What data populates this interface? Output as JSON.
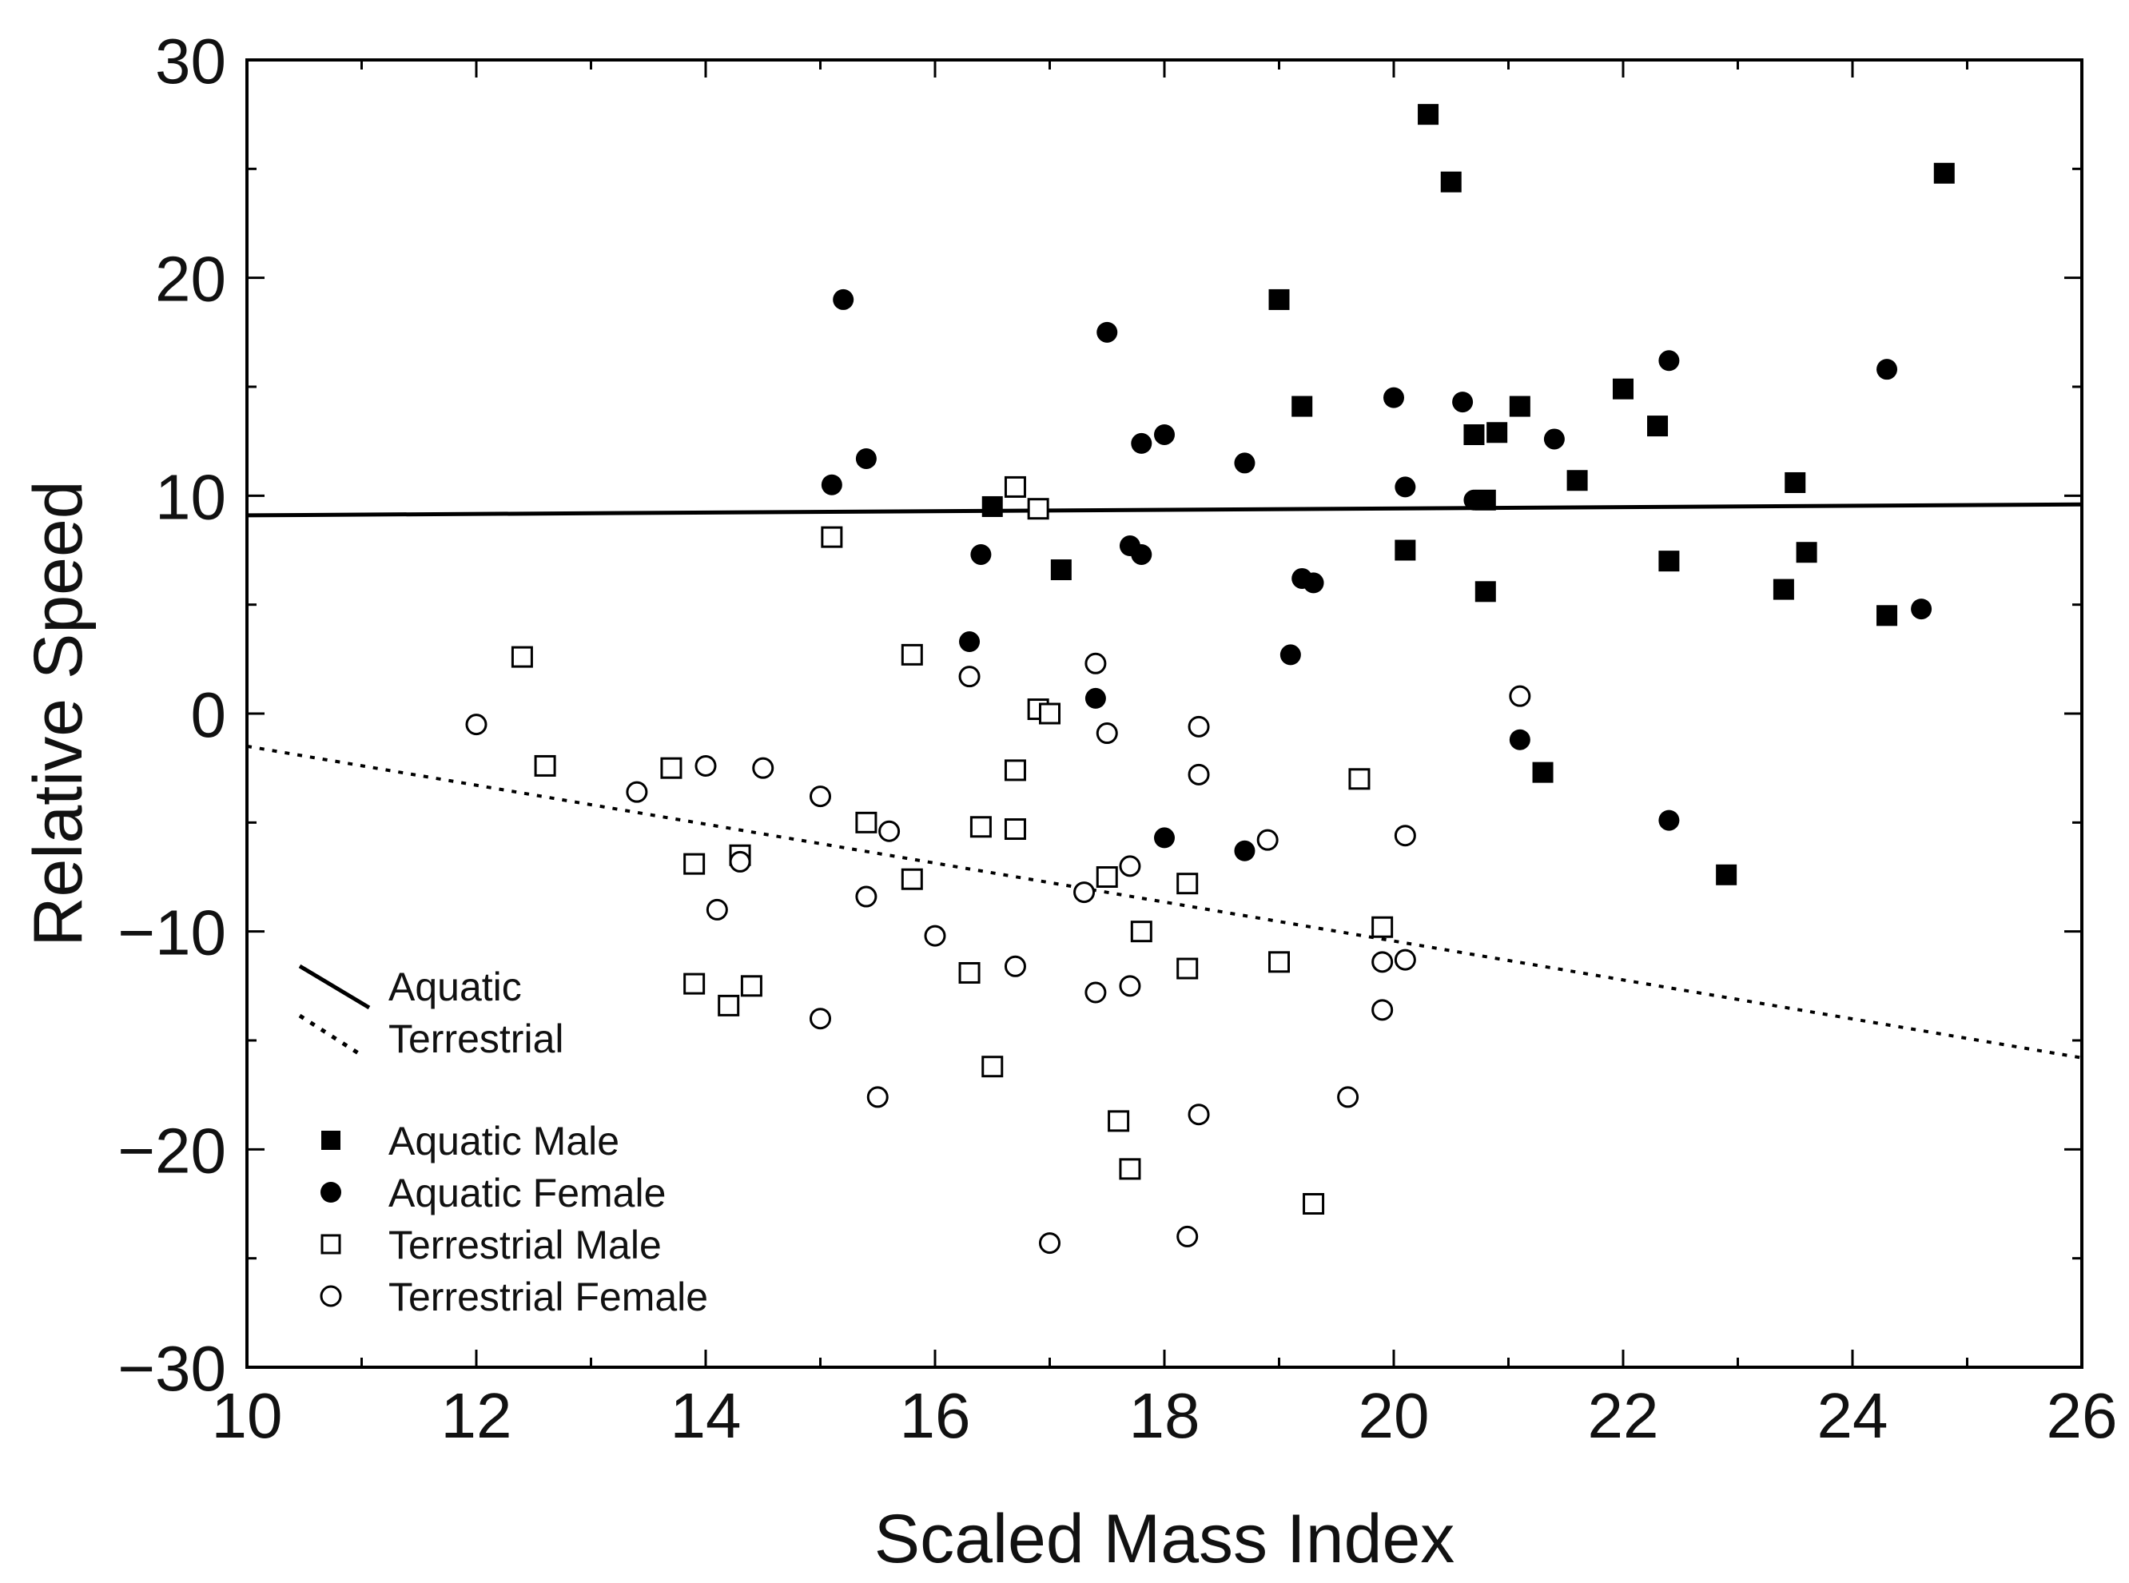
{
  "chart_data": {
    "type": "scatter",
    "title": "",
    "xlabel": "Scaled Mass Index",
    "ylabel": "Relative Speed",
    "xlim": [
      10,
      26
    ],
    "ylim": [
      -30,
      30
    ],
    "xticks": [
      10,
      12,
      14,
      16,
      18,
      20,
      22,
      24,
      26
    ],
    "yticks": [
      30,
      20,
      10,
      0,
      -10,
      -20,
      -30
    ],
    "ytick_labels": [
      "30",
      "20",
      "10",
      "0",
      "−10",
      "−20",
      "−30"
    ],
    "grid": false,
    "legend_lines": [
      {
        "name": "Aquatic",
        "style": "solid"
      },
      {
        "name": "Terrestrial",
        "style": "dotted"
      }
    ],
    "legend_markers": [
      {
        "name": "Aquatic Male",
        "marker": "filled-square"
      },
      {
        "name": "Aquatic Female",
        "marker": "filled-circle"
      },
      {
        "name": "Terrestrial Male",
        "marker": "open-square"
      },
      {
        "name": "Terrestrial Female",
        "marker": "open-circle"
      }
    ],
    "regression_lines": [
      {
        "name": "Aquatic",
        "style": "solid",
        "x": [
          10,
          26
        ],
        "y": [
          9.1,
          9.6
        ]
      },
      {
        "name": "Terrestrial",
        "style": "dotted",
        "x": [
          10,
          26
        ],
        "y": [
          -1.5,
          -15.8
        ]
      }
    ],
    "series": [
      {
        "name": "Aquatic Male",
        "marker": "filled-square",
        "points": [
          [
            20.3,
            27.5
          ],
          [
            20.5,
            24.4
          ],
          [
            24.8,
            24.8
          ],
          [
            19.0,
            19.0
          ],
          [
            19.2,
            14.1
          ],
          [
            20.7,
            12.8
          ],
          [
            20.9,
            12.9
          ],
          [
            21.1,
            14.1
          ],
          [
            22.0,
            14.9
          ],
          [
            22.3,
            13.2
          ],
          [
            21.6,
            10.7
          ],
          [
            23.5,
            10.6
          ],
          [
            20.8,
            9.8
          ],
          [
            16.5,
            9.5
          ],
          [
            20.1,
            7.5
          ],
          [
            22.4,
            7.0
          ],
          [
            23.6,
            7.4
          ],
          [
            17.1,
            6.6
          ],
          [
            20.8,
            5.6
          ],
          [
            23.4,
            5.7
          ],
          [
            24.3,
            4.5
          ],
          [
            21.3,
            -2.7
          ],
          [
            22.9,
            -7.4
          ]
        ]
      },
      {
        "name": "Aquatic Female",
        "marker": "filled-circle",
        "points": [
          [
            15.2,
            19.0
          ],
          [
            17.5,
            17.5
          ],
          [
            15.4,
            11.7
          ],
          [
            15.1,
            10.5
          ],
          [
            17.8,
            12.4
          ],
          [
            18.0,
            12.8
          ],
          [
            18.7,
            11.5
          ],
          [
            20.0,
            14.5
          ],
          [
            20.6,
            14.3
          ],
          [
            21.4,
            12.6
          ],
          [
            22.4,
            16.2
          ],
          [
            24.3,
            15.8
          ],
          [
            20.1,
            10.4
          ],
          [
            20.7,
            9.8
          ],
          [
            16.4,
            7.3
          ],
          [
            17.7,
            7.7
          ],
          [
            17.8,
            7.3
          ],
          [
            19.2,
            6.2
          ],
          [
            19.3,
            6.0
          ],
          [
            24.6,
            4.8
          ],
          [
            16.3,
            3.3
          ],
          [
            19.1,
            2.7
          ],
          [
            17.4,
            0.7
          ],
          [
            21.1,
            -1.2
          ],
          [
            22.4,
            -4.9
          ],
          [
            18.0,
            -5.7
          ],
          [
            18.7,
            -6.3
          ]
        ]
      },
      {
        "name": "Terrestrial Male",
        "marker": "open-square",
        "points": [
          [
            16.7,
            10.4
          ],
          [
            16.9,
            9.4
          ],
          [
            15.1,
            8.1
          ],
          [
            12.4,
            2.6
          ],
          [
            15.8,
            2.7
          ],
          [
            16.9,
            0.2
          ],
          [
            17.0,
            0.0
          ],
          [
            12.6,
            -2.4
          ],
          [
            13.7,
            -2.5
          ],
          [
            16.7,
            -2.6
          ],
          [
            19.7,
            -3.0
          ],
          [
            15.4,
            -5.0
          ],
          [
            16.4,
            -5.2
          ],
          [
            16.7,
            -5.3
          ],
          [
            13.9,
            -6.9
          ],
          [
            14.3,
            -6.5
          ],
          [
            15.8,
            -7.6
          ],
          [
            17.5,
            -7.5
          ],
          [
            18.2,
            -7.8
          ],
          [
            17.8,
            -10.0
          ],
          [
            19.9,
            -9.8
          ],
          [
            13.9,
            -12.4
          ],
          [
            14.4,
            -12.5
          ],
          [
            14.2,
            -13.4
          ],
          [
            16.3,
            -11.9
          ],
          [
            18.2,
            -11.7
          ],
          [
            19.0,
            -11.4
          ],
          [
            16.5,
            -16.2
          ],
          [
            17.6,
            -18.7
          ],
          [
            17.7,
            -20.9
          ],
          [
            19.3,
            -22.5
          ]
        ]
      },
      {
        "name": "Terrestrial Female",
        "marker": "open-circle",
        "points": [
          [
            12.0,
            -0.5
          ],
          [
            14.0,
            -2.4
          ],
          [
            14.5,
            -2.5
          ],
          [
            13.4,
            -3.6
          ],
          [
            15.0,
            -3.8
          ],
          [
            15.6,
            -5.4
          ],
          [
            16.3,
            1.7
          ],
          [
            17.4,
            2.3
          ],
          [
            17.5,
            -0.9
          ],
          [
            18.3,
            -0.6
          ],
          [
            18.3,
            -2.8
          ],
          [
            21.1,
            0.8
          ],
          [
            14.3,
            -6.8
          ],
          [
            14.1,
            -9.0
          ],
          [
            15.4,
            -8.4
          ],
          [
            16.0,
            -10.2
          ],
          [
            16.7,
            -11.6
          ],
          [
            17.3,
            -8.2
          ],
          [
            17.7,
            -7.0
          ],
          [
            18.9,
            -5.8
          ],
          [
            20.1,
            -5.6
          ],
          [
            15.0,
            -14.0
          ],
          [
            17.4,
            -12.8
          ],
          [
            17.7,
            -12.5
          ],
          [
            19.9,
            -13.6
          ],
          [
            19.9,
            -11.4
          ],
          [
            20.1,
            -11.3
          ],
          [
            15.5,
            -17.6
          ],
          [
            18.3,
            -18.4
          ],
          [
            19.6,
            -17.6
          ],
          [
            17.0,
            -24.3
          ],
          [
            18.2,
            -24.0
          ]
        ]
      }
    ]
  }
}
